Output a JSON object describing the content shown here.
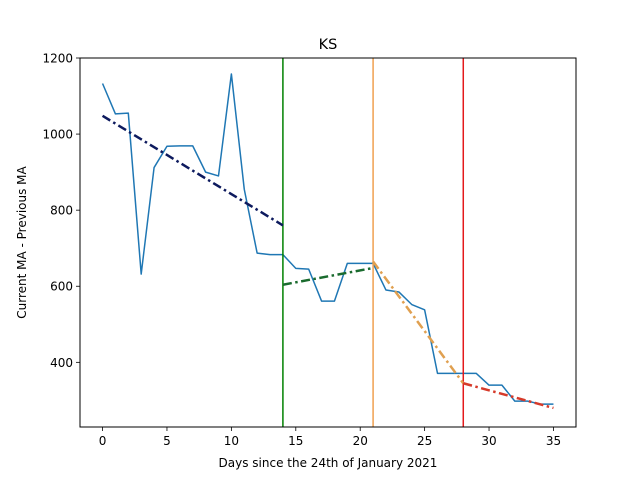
{
  "chart_data": {
    "type": "line",
    "title": "KS",
    "xlabel": "Days since the 24th of January 2021",
    "ylabel": "Current MA - Previous MA",
    "xlim": [
      -1.75,
      36.75
    ],
    "ylim": [
      230,
      1200
    ],
    "xticks": [
      0,
      5,
      10,
      15,
      20,
      25,
      30,
      35
    ],
    "yticks": [
      400,
      600,
      800,
      1000,
      1200
    ],
    "grid": false,
    "legend": "none",
    "series": [
      {
        "style": "solid",
        "color": "#1f77b4",
        "x": [
          0,
          1,
          2,
          3,
          4,
          5,
          6,
          7,
          8,
          9,
          10,
          11,
          12,
          13,
          14,
          15,
          16,
          17,
          18,
          19,
          20,
          21,
          22,
          23,
          24,
          25,
          26,
          27,
          28,
          29,
          30,
          31,
          32,
          33,
          34,
          35
        ],
        "y": [
          1133,
          1053,
          1055,
          632,
          912,
          968,
          969,
          969,
          900,
          890,
          1158,
          855,
          687,
          683,
          683,
          647,
          645,
          561,
          561,
          660,
          660,
          660,
          590,
          585,
          552,
          538,
          371,
          371,
          371,
          371,
          340,
          340,
          298,
          298,
          290,
          290
        ]
      }
    ],
    "trendlines": [
      {
        "x": [
          0,
          14
        ],
        "y": [
          1048,
          760
        ],
        "color": "#0d1a5e",
        "style": "dashdot"
      },
      {
        "x": [
          14,
          21
        ],
        "y": [
          604,
          648
        ],
        "color": "#1a6b2e",
        "style": "dashdot"
      },
      {
        "x": [
          21,
          28
        ],
        "y": [
          665,
          345
        ],
        "color": "#e0a050",
        "style": "dashdot"
      },
      {
        "x": [
          28,
          35
        ],
        "y": [
          345,
          280
        ],
        "color": "#d63a2a",
        "style": "dashdot"
      }
    ],
    "vlines": [
      {
        "x": 14,
        "color": "#008000"
      },
      {
        "x": 21,
        "color": "#f0a050"
      },
      {
        "x": 28,
        "color": "#e41a1c"
      }
    ]
  }
}
